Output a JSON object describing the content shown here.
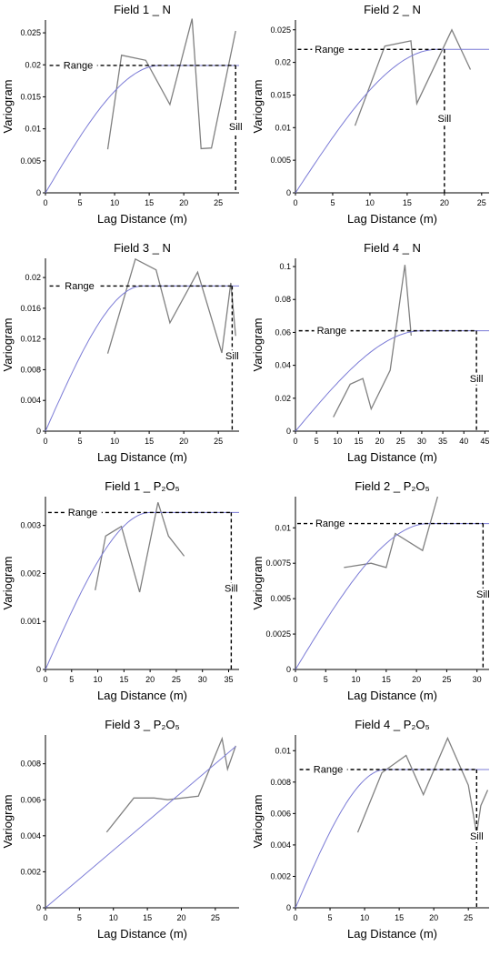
{
  "chart_data": [
    {
      "type": "line",
      "title": "Field 1 _ N",
      "xlabel": "Lag Distance (m)",
      "ylabel": "Variogram",
      "xlim": [
        0,
        28
      ],
      "ylim": [
        0,
        0.027
      ],
      "xticks": [
        0,
        5,
        10,
        15,
        20,
        25
      ],
      "xtick_labels": [
        "0",
        "5",
        "10",
        "15",
        "20",
        "25"
      ],
      "yticks": [
        0,
        0.005,
        0.01,
        0.015,
        0.02,
        0.025
      ],
      "ytick_labels": [
        "0",
        "0.005",
        "0.01",
        "0.015",
        "0.02",
        "0.025"
      ],
      "series": [
        {
          "role": "experimental",
          "color": "#808080",
          "x": [
            9,
            11,
            14.5,
            18,
            21.2,
            22.5,
            24,
            27.5
          ],
          "y": [
            0.0068,
            0.0215,
            0.0207,
            0.0138,
            0.0272,
            0.0069,
            0.007,
            0.0253
          ]
        },
        {
          "role": "model",
          "color": "#7b7bd6",
          "nugget": 0,
          "sill": 0.0199,
          "range": 16.5
        }
      ],
      "range_label": "Range",
      "range_x": 27.5,
      "range_y": 0.0199,
      "range_line_from": 0.6,
      "range_label_x": 2.6,
      "sill_label": "Sill",
      "sill_x": 27.5
    },
    {
      "type": "line",
      "title": "Field 2 _ N",
      "xlabel": "Lag Distance (m)",
      "ylabel": "Variogram",
      "xlim": [
        0,
        26
      ],
      "ylim": [
        0,
        0.0265
      ],
      "xticks": [
        0,
        5,
        10,
        15,
        20,
        25
      ],
      "xtick_labels": [
        "0",
        "5",
        "10",
        "15",
        "20",
        "25"
      ],
      "yticks": [
        0,
        0.005,
        0.01,
        0.015,
        0.02,
        0.025
      ],
      "ytick_labels": [
        "0",
        "0.005",
        "0.01",
        "0.015",
        "0.02",
        "0.025"
      ],
      "series": [
        {
          "role": "experimental",
          "color": "#808080",
          "x": [
            8,
            12,
            15.5,
            16.3,
            21,
            23.5
          ],
          "y": [
            0.0103,
            0.0225,
            0.0233,
            0.0137,
            0.025,
            0.0189
          ]
        },
        {
          "role": "model",
          "color": "#7b7bd6",
          "nugget": 0,
          "sill": 0.022,
          "range": 19
        }
      ],
      "range_label": "Range",
      "range_x": 20,
      "range_y": 0.022,
      "range_line_from": 0.3,
      "range_label_x": 2.6,
      "sill_label": "Sill",
      "sill_x": 20
    },
    {
      "type": "line",
      "title": "Field 3 _ N",
      "xlabel": "Lag Distance (m)",
      "ylabel": "Variogram",
      "xlim": [
        0,
        28
      ],
      "ylim": [
        0,
        0.0225
      ],
      "xticks": [
        0,
        5,
        10,
        15,
        20,
        25
      ],
      "xtick_labels": [
        "0",
        "5",
        "10",
        "15",
        "20",
        "25"
      ],
      "yticks": [
        0,
        0.004,
        0.008,
        0.012,
        0.016,
        0.02
      ],
      "ytick_labels": [
        "0",
        "0.004",
        "0.008",
        "0.012",
        "0.016",
        "0.02"
      ],
      "series": [
        {
          "role": "experimental",
          "color": "#808080",
          "x": [
            9,
            13,
            16,
            18,
            22,
            25.5,
            26.8,
            27.5
          ],
          "y": [
            0.0101,
            0.0224,
            0.021,
            0.0141,
            0.0207,
            0.0102,
            0.0193,
            0.0124
          ]
        },
        {
          "role": "model",
          "color": "#7b7bd6",
          "nugget": 0,
          "sill": 0.0189,
          "range": 14
        }
      ],
      "range_label": "Range",
      "range_x": 27,
      "range_y": 0.0189,
      "range_line_from": 0.6,
      "range_label_x": 2.8,
      "sill_label": "Sill",
      "sill_x": 27
    },
    {
      "type": "line",
      "title": "Field 4 _ N",
      "xlabel": "Lag Distance (m)",
      "ylabel": "Variogram",
      "xlim": [
        0,
        46
      ],
      "ylim": [
        0,
        0.105
      ],
      "xticks": [
        0,
        5,
        10,
        15,
        20,
        25,
        30,
        35,
        40,
        45
      ],
      "xtick_labels": [
        "0",
        "5",
        "10",
        "15",
        "20",
        "25",
        "30",
        "35",
        "40",
        "45"
      ],
      "yticks": [
        0,
        0.02,
        0.04,
        0.06,
        0.08,
        0.1
      ],
      "ytick_labels": [
        "0",
        "0.02",
        "0.04",
        "0.06",
        "0.08",
        "0.1"
      ],
      "series": [
        {
          "role": "experimental",
          "color": "#808080",
          "x": [
            9,
            13,
            16,
            18,
            22.5,
            26,
            27.5
          ],
          "y": [
            0.0085,
            0.0285,
            0.032,
            0.0135,
            0.037,
            0.101,
            0.058
          ]
        },
        {
          "role": "model",
          "color": "#7b7bd6",
          "nugget": 0,
          "sill": 0.061,
          "range": 30
        }
      ],
      "range_label": "Range",
      "range_x": 43,
      "range_y": 0.061,
      "range_line_from": 0.8,
      "range_label_x": 5.1,
      "sill_label": "Sill",
      "sill_x": 43
    },
    {
      "type": "line",
      "title": "Field 1 _ P₂O₅",
      "xlabel": "Lag Distance (m)",
      "ylabel": "Variogram",
      "xlim": [
        0,
        37
      ],
      "ylim": [
        0,
        0.0036
      ],
      "xticks": [
        0,
        5,
        10,
        15,
        20,
        25,
        30,
        35
      ],
      "xtick_labels": [
        "0",
        "5",
        "10",
        "15",
        "20",
        "25",
        "30",
        "35"
      ],
      "yticks": [
        0,
        0.001,
        0.002,
        0.003
      ],
      "ytick_labels": [
        "0",
        "0.001",
        "0.002",
        "0.003"
      ],
      "series": [
        {
          "role": "experimental",
          "color": "#808080",
          "x": [
            9.5,
            11.5,
            14.5,
            18,
            21.5,
            23.5,
            26.5
          ],
          "y": [
            0.00165,
            0.00278,
            0.00298,
            0.00161,
            0.00348,
            0.00278,
            0.00236
          ]
        },
        {
          "role": "model",
          "color": "#7b7bd6",
          "nugget": 0,
          "sill": 0.00327,
          "range": 20
        }
      ],
      "range_label": "Range",
      "range_x": 35.5,
      "range_y": 0.00327,
      "range_line_from": 0.5,
      "range_label_x": 4.3,
      "sill_label": "Sill",
      "sill_x": 35.5
    },
    {
      "type": "line",
      "title": "Field 2 _ P₂O₅",
      "xlabel": "Lag Distance (m)",
      "ylabel": "Variogram",
      "xlim": [
        0,
        32
      ],
      "ylim": [
        0,
        0.0122
      ],
      "xticks": [
        0,
        5,
        10,
        15,
        20,
        25,
        30
      ],
      "xtick_labels": [
        "0",
        "5",
        "10",
        "15",
        "20",
        "25",
        "30"
      ],
      "yticks": [
        0,
        0.0025,
        0.005,
        0.0075,
        0.01
      ],
      "ytick_labels": [
        "0",
        "0.0025",
        "0.005",
        "0.0075",
        "0.01"
      ],
      "series": [
        {
          "role": "experimental",
          "color": "#808080",
          "x": [
            8,
            12.5,
            15,
            16.5,
            21,
            23.5
          ],
          "y": [
            0.0072,
            0.0075,
            0.0072,
            0.0096,
            0.0084,
            0.0122
          ]
        },
        {
          "role": "model",
          "color": "#7b7bd6",
          "nugget": 0,
          "sill": 0.0103,
          "range": 22
        }
      ],
      "range_label": "Range",
      "range_x": 31,
      "range_y": 0.0103,
      "range_line_from": 0.3,
      "range_label_x": 3.3,
      "sill_label": "Sill",
      "sill_x": 31
    },
    {
      "type": "line",
      "title": "Field 3 _ P₂O₅",
      "xlabel": "Lag Distance (m)",
      "ylabel": "Variogram",
      "xlim": [
        0,
        28.5
      ],
      "ylim": [
        0,
        0.0096
      ],
      "xticks": [
        0,
        5,
        10,
        15,
        20,
        25
      ],
      "xtick_labels": [
        "0",
        "5",
        "10",
        "15",
        "20",
        "25"
      ],
      "yticks": [
        0,
        0.002,
        0.004,
        0.006,
        0.008
      ],
      "ytick_labels": [
        "0",
        "0.002",
        "0.004",
        "0.006",
        "0.008"
      ],
      "series": [
        {
          "role": "experimental",
          "color": "#808080",
          "x": [
            9,
            13,
            16,
            18,
            22.5,
            26,
            26.8,
            28
          ],
          "y": [
            0.0042,
            0.0061,
            0.0061,
            0.006,
            0.0062,
            0.0094,
            0.0077,
            0.009
          ]
        },
        {
          "role": "model",
          "color": "#7b7bd6",
          "nugget": 0,
          "slope": 0.00032,
          "x_end": 28
        }
      ]
    },
    {
      "type": "line",
      "title": "Field 4 _ P₂O₅",
      "xlabel": "Lag Distance (m)",
      "ylabel": "Variogram",
      "xlim": [
        0,
        28
      ],
      "ylim": [
        0,
        0.011
      ],
      "xticks": [
        0,
        5,
        10,
        15,
        20,
        25
      ],
      "xtick_labels": [
        "0",
        "5",
        "10",
        "15",
        "20",
        "25"
      ],
      "yticks": [
        0,
        0.002,
        0.004,
        0.006,
        0.008,
        0.01
      ],
      "ytick_labels": [
        "0",
        "0.002",
        "0.004",
        "0.006",
        "0.008",
        "0.01"
      ],
      "series": [
        {
          "role": "experimental",
          "color": "#808080",
          "x": [
            9,
            12.5,
            16,
            18.5,
            22,
            25,
            26.2,
            26.8,
            27.8
          ],
          "y": [
            0.0048,
            0.0086,
            0.0097,
            0.0072,
            0.0108,
            0.0078,
            0.0047,
            0.0065,
            0.0075
          ]
        },
        {
          "role": "model",
          "color": "#7b7bd6",
          "nugget": 0,
          "sill": 0.0088,
          "range": 13
        }
      ],
      "range_label": "Range",
      "range_x": 26.2,
      "range_y": 0.0088,
      "range_line_from": 0.6,
      "range_label_x": 2.6,
      "sill_label": "Sill",
      "sill_x": 26.2
    }
  ]
}
